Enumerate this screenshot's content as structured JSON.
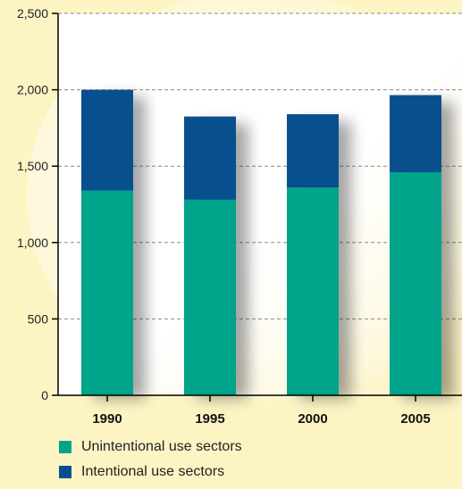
{
  "chart_data": {
    "type": "bar",
    "stacked": true,
    "categories": [
      "1990",
      "1995",
      "2000",
      "2005"
    ],
    "series": [
      {
        "name": "Unintentional use sectors",
        "values": [
          1340,
          1280,
          1360,
          1460
        ],
        "color": "#00a48a"
      },
      {
        "name": "Intentional use sectors",
        "values": [
          660,
          545,
          480,
          505
        ],
        "color": "#08508d"
      }
    ],
    "ylim": [
      0,
      2500
    ],
    "yticks": [
      0,
      500,
      1000,
      1500,
      2000,
      2500
    ],
    "ytick_labels": [
      "0",
      "500",
      "1,000",
      "1,500",
      "2,000",
      "2,500"
    ],
    "grid": "horizontal dashed",
    "legend": "bottom-left"
  },
  "colors": {
    "outer_background": "#fdf4c4",
    "plot_background": "#ffffff"
  }
}
